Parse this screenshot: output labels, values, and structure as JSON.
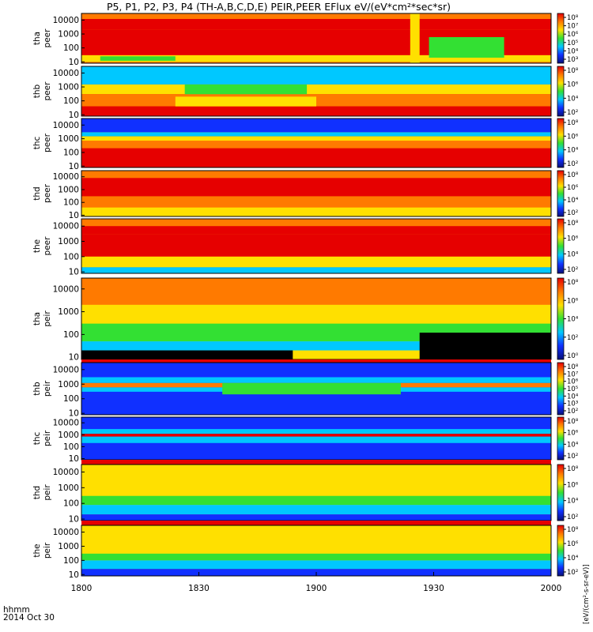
{
  "title": "P5, P1, P2, P3, P4 (TH-A,B,C,D,E) PEIR,PEER EFlux eV/(eV*cm²*sec*sr)",
  "footer": {
    "time_label": "hhmm",
    "date_label": "2014 Oct 30"
  },
  "colorbar_unit_label": "[eV/(cm²-s-sr-eV)]",
  "colors": {
    "red": "#e60000",
    "orange": "#ff7a00",
    "yellow": "#ffe000",
    "green": "#33e033",
    "cyan": "#00c8ff",
    "blue": "#1030ff",
    "navy": "#08107a",
    "black": "#000000"
  },
  "chart_data": {
    "type": "heatmap",
    "x_ticks": [
      "1800",
      "1830",
      "1900",
      "1930",
      "2000"
    ],
    "x_range": [
      "18:00",
      "20:00"
    ],
    "y_scale": "log",
    "panels": [
      {
        "probe": "tha",
        "species": "peer",
        "y_ticks": [
          "10000",
          "1000",
          "100",
          "10"
        ],
        "y_range": [
          8,
          30000
        ],
        "cb_ticks": [
          "10⁸",
          "10⁷",
          "10⁶",
          "10⁵",
          "10⁴",
          "10³"
        ]
      },
      {
        "probe": "thb",
        "species": "peer",
        "y_ticks": [
          "10000",
          "1000",
          "100",
          "10"
        ],
        "y_range": [
          8,
          30000
        ],
        "cb_ticks": [
          "10⁸",
          "10⁶",
          "10⁴",
          "10²"
        ]
      },
      {
        "probe": "thc",
        "species": "peer",
        "y_ticks": [
          "10000",
          "1000",
          "100",
          "10"
        ],
        "y_range": [
          8,
          30000
        ],
        "cb_ticks": [
          "10⁸",
          "10⁶",
          "10⁴",
          "10²"
        ]
      },
      {
        "probe": "thd",
        "species": "peer",
        "y_ticks": [
          "10000",
          "1000",
          "100",
          "10"
        ],
        "y_range": [
          8,
          30000
        ],
        "cb_ticks": [
          "10⁸",
          "10⁶",
          "10⁴",
          "10²"
        ]
      },
      {
        "probe": "the",
        "species": "peer",
        "y_ticks": [
          "10000",
          "1000",
          "100",
          "10"
        ],
        "y_range": [
          8,
          30000
        ],
        "cb_ticks": [
          "10⁸",
          "10⁶",
          "10⁴",
          "10²"
        ]
      },
      {
        "probe": "tha",
        "species": "peir",
        "y_ticks": [
          "10000",
          "1000",
          "100",
          "10"
        ],
        "y_range": [
          8,
          30000
        ],
        "cb_ticks": [
          "10⁸",
          "10⁶",
          "10⁴",
          "10²",
          "10⁰"
        ]
      },
      {
        "probe": "thb",
        "species": "peir",
        "y_ticks": [
          "10000",
          "1000",
          "100",
          "10"
        ],
        "y_range": [
          8,
          30000
        ],
        "cb_ticks": [
          "10⁸",
          "10⁷",
          "10⁶",
          "10⁵",
          "10⁴",
          "10³",
          "10²"
        ]
      },
      {
        "probe": "thc",
        "species": "peir",
        "y_ticks": [
          "10000",
          "1000",
          "100",
          "10"
        ],
        "y_range": [
          8,
          30000
        ],
        "cb_ticks": [
          "10⁸",
          "10⁶",
          "10⁴",
          "10²"
        ]
      },
      {
        "probe": "thd",
        "species": "peir",
        "y_ticks": [
          "10000",
          "1000",
          "100",
          "10"
        ],
        "y_range": [
          8,
          30000
        ],
        "cb_ticks": [
          "10⁸",
          "10⁶",
          "10⁴",
          "10²"
        ]
      },
      {
        "probe": "the",
        "species": "peir",
        "y_ticks": [
          "10000",
          "1000",
          "100",
          "10"
        ],
        "y_range": [
          8,
          30000
        ],
        "cb_ticks": [
          "10⁸",
          "10⁶",
          "10⁴",
          "10²"
        ]
      }
    ]
  }
}
